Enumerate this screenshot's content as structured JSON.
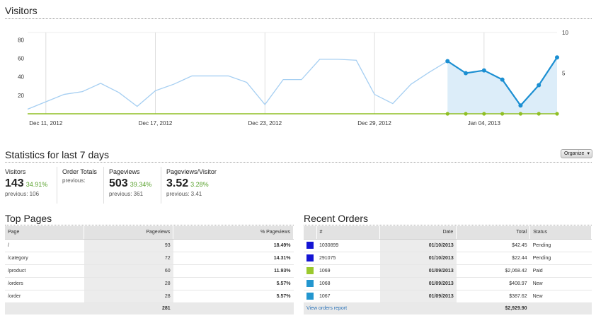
{
  "visitors_section": {
    "title": "Visitors"
  },
  "chart_data": {
    "type": "line",
    "x_ticks": [
      "Dec 11, 2012",
      "Dec 17, 2012",
      "Dec 23, 2012",
      "Dec 29, 2012",
      "Jan 04, 2013"
    ],
    "y_left_ticks": [
      "20",
      "40",
      "60",
      "80"
    ],
    "y_right_ticks": [
      "5",
      "10"
    ],
    "ylim_left": [
      0,
      88
    ],
    "ylim_right": [
      0,
      10
    ],
    "grid": true,
    "series": [
      {
        "role": "previous-period",
        "color": "#a6cff2",
        "x": [
          "2012-12-10",
          "2012-12-11",
          "2012-12-12",
          "2012-12-13",
          "2012-12-14",
          "2012-12-15",
          "2012-12-16",
          "2012-12-17",
          "2012-12-18",
          "2012-12-19",
          "2012-12-20",
          "2012-12-21",
          "2012-12-22",
          "2012-12-23",
          "2012-12-24",
          "2012-12-25",
          "2012-12-26",
          "2012-12-27",
          "2012-12-28",
          "2012-12-29",
          "2012-12-30",
          "2012-12-31",
          "2013-01-01",
          "2013-01-02"
        ],
        "values": [
          5,
          13,
          21,
          24,
          33,
          23,
          8,
          25,
          32,
          41,
          41,
          41,
          34,
          10,
          37,
          37,
          59,
          59,
          58,
          21,
          11,
          32,
          45,
          57
        ]
      },
      {
        "role": "current-period",
        "color": "#1b8fd2",
        "x": [
          "2013-01-02",
          "2013-01-03",
          "2013-01-04",
          "2013-01-05",
          "2013-01-06",
          "2013-01-07",
          "2013-01-08"
        ],
        "values": [
          57,
          44,
          47,
          37,
          9,
          31,
          61
        ]
      },
      {
        "role": "orders",
        "axis": "right",
        "color": "#8fbf24",
        "x": [
          "2013-01-02",
          "2013-01-03",
          "2013-01-04",
          "2013-01-05",
          "2013-01-06",
          "2013-01-07",
          "2013-01-08"
        ],
        "values": [
          0,
          0,
          0,
          0,
          0,
          0,
          0
        ]
      }
    ]
  },
  "stats": {
    "title": "Statistics for last 7 days",
    "organize_label": "Organize",
    "visitors": {
      "label": "Visitors",
      "value": "143",
      "change": "34.91%",
      "previous": "previous: 106"
    },
    "order_totals": {
      "label": "Order Totals",
      "previous": "previous:"
    },
    "pageviews": {
      "label": "Pageviews",
      "value": "503",
      "change": "39.34%",
      "previous": "previous: 361"
    },
    "ppv": {
      "label": "Pageviews/Visitor",
      "value": "3.52",
      "change": "3.28%",
      "previous": "previous: 3.41"
    }
  },
  "top_pages": {
    "title": "Top Pages",
    "headers": {
      "page": "Page",
      "pageviews": "Pageviews",
      "pct": "% Pageviews"
    },
    "rows": [
      {
        "page": "/",
        "pageviews": "93",
        "pct": "18.49%"
      },
      {
        "page": "/category",
        "pageviews": "72",
        "pct": "14.31%"
      },
      {
        "page": "/product",
        "pageviews": "60",
        "pct": "11.93%"
      },
      {
        "page": "/orders",
        "pageviews": "28",
        "pct": "5.57%"
      },
      {
        "page": "/order",
        "pageviews": "28",
        "pct": "5.57%"
      }
    ],
    "total_pageviews": "281"
  },
  "recent_orders": {
    "title": "Recent Orders",
    "headers": {
      "num": "#",
      "date": "Date",
      "total": "Total",
      "status": "Status"
    },
    "rows": [
      {
        "color": "#1414d4",
        "num": "1030899",
        "date": "01/10/2013",
        "total": "$42.45",
        "status": "Pending"
      },
      {
        "color": "#1414d4",
        "num": "291075",
        "date": "01/10/2013",
        "total": "$22.44",
        "status": "Pending"
      },
      {
        "color": "#9bc92e",
        "num": "1069",
        "date": "01/09/2013",
        "total": "$2,068.42",
        "status": "Paid"
      },
      {
        "color": "#2396cf",
        "num": "1068",
        "date": "01/09/2013",
        "total": "$408.97",
        "status": "New"
      },
      {
        "color": "#2396cf",
        "num": "1067",
        "date": "01/09/2013",
        "total": "$387.62",
        "status": "New"
      }
    ],
    "view_link": "View orders report",
    "grand_total": "$2,929.90"
  }
}
